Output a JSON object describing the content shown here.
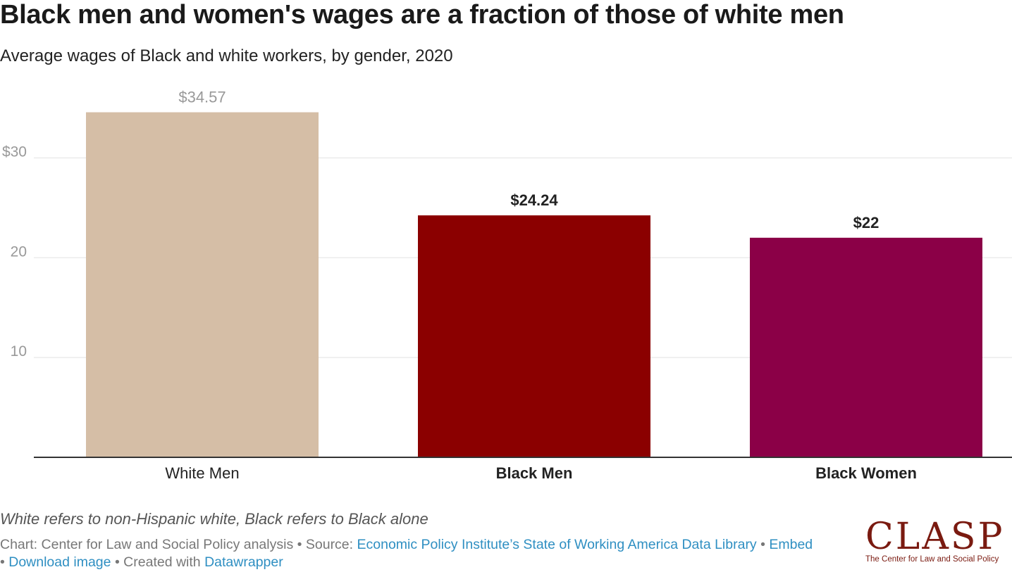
{
  "title": "Black men and women's wages are a fraction of those of white men",
  "subtitle": "Average wages of Black and white workers, by gender, 2020",
  "note": "White refers to non-Hispanic white, Black refers to Black alone",
  "credits": {
    "chart_label": "Chart: Center for Law and Social Policy analysis",
    "source_prefix": "• Source:",
    "source_link": "Economic Policy Institute’s State of Working America Data Library",
    "sep1": "•",
    "embed": "Embed",
    "sep2": "•",
    "download": "Download image",
    "created_prefix": "• Created with",
    "datawrapper": "Datawrapper"
  },
  "logo": {
    "word": "CLASP",
    "tagline": "The Center for Law and Social Policy"
  },
  "colors": {
    "white_men": "#d5bea6",
    "black_men": "#8b0000",
    "black_women": "#8b0047",
    "grid": "#e2e2e2",
    "axis": "#333333"
  },
  "chart_data": {
    "type": "bar",
    "title": "Black men and women's wages are a fraction of those of white men",
    "subtitle": "Average wages of Black and white workers, by gender, 2020",
    "categories": [
      "White Men",
      "Black Men",
      "Black Women"
    ],
    "values": [
      34.57,
      24.24,
      22
    ],
    "value_labels": [
      "$34.57",
      "$24.24",
      "$22"
    ],
    "y_ticks": [
      {
        "value": 10,
        "label": "10"
      },
      {
        "value": 20,
        "label": "20"
      },
      {
        "value": 30,
        "label": "$30"
      }
    ],
    "ylim": [
      0,
      37.5
    ],
    "grid": true,
    "highlighted": [
      "Black Men",
      "Black Women"
    ],
    "bar_colors": [
      "#d5bea6",
      "#8b0000",
      "#8b0047"
    ]
  }
}
